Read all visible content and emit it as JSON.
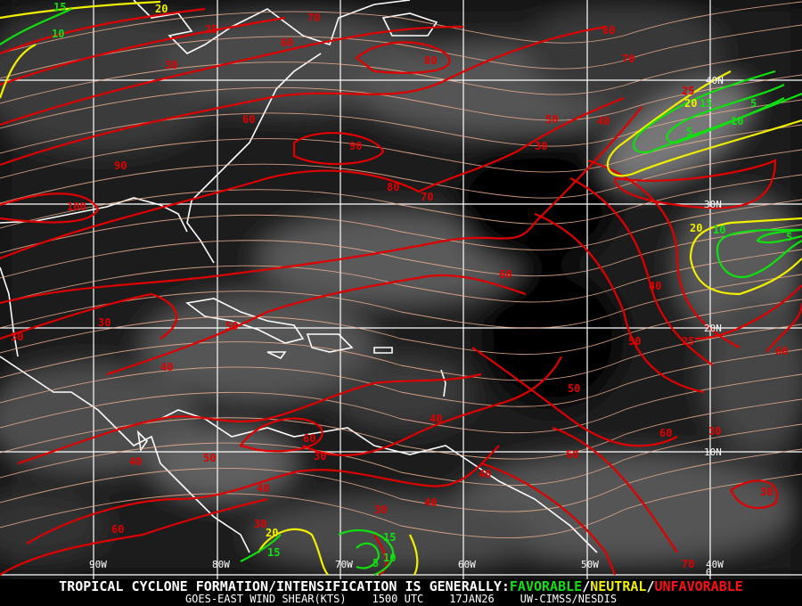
{
  "map": {
    "title_line": {
      "prefix": "TROPICAL CYCLONE FORMATION/INTENSIFICATION IS GENERALLY:",
      "favorable": "FAVORABLE",
      "sep1": "/",
      "neutral": "NEUTRAL",
      "sep2": "/",
      "unfavorable": "UNFAVORABLE"
    },
    "subtitle": {
      "product": "GOES-EAST WIND SHEAR(KTS)",
      "time": "1500 UTC",
      "date": "17JAN26",
      "source": "UW-CIMSS/NESDIS"
    },
    "longitude_labels": [
      "90W",
      "80W",
      "70W",
      "60W",
      "50W",
      "40W"
    ],
    "latitude_labels": [
      "40N",
      "30N",
      "20N",
      "10N",
      "0"
    ],
    "colors": {
      "favorable": "#10e010",
      "neutral": "#f0f000",
      "unfavorable": "#e00000",
      "streamlines": "#f0b090",
      "coastlines": "#ffffff"
    },
    "contour_labels": {
      "red": [
        "70",
        "60",
        "80",
        "30",
        "25",
        "60",
        "70",
        "50",
        "40",
        "30",
        "90",
        "80",
        "70",
        "100",
        "90",
        "60",
        "40",
        "30",
        "50",
        "50",
        "40",
        "30",
        "60",
        "40",
        "40",
        "60",
        "50",
        "40",
        "50",
        "30",
        "30",
        "40",
        "40",
        "60",
        "30",
        "60",
        "30",
        "25",
        "60",
        "70",
        "25",
        "60",
        "30"
      ],
      "yellow": [
        "20",
        "20",
        "20",
        "20"
      ],
      "green": [
        "15",
        "10",
        "15",
        "5",
        "10",
        "5",
        "10",
        "5",
        "15",
        "5",
        "10",
        "15"
      ]
    }
  }
}
